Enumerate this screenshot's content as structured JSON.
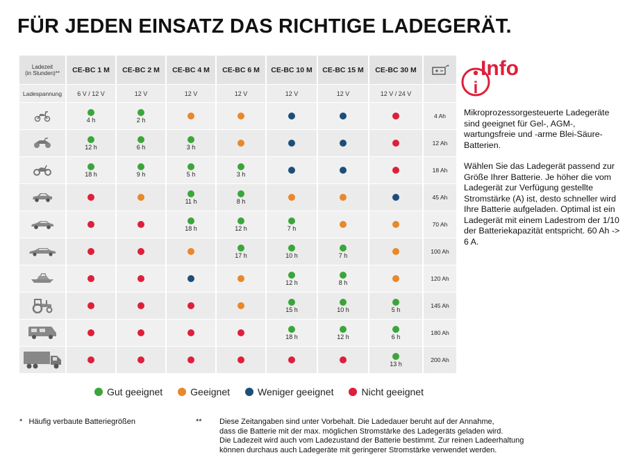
{
  "title": "FÜR JEDEN EINSATZ DAS RICHTIGE LADEGERÄT.",
  "colors": {
    "gut": "#3aa63a",
    "geeignet": "#e8882a",
    "weniger": "#1d4e7a",
    "nicht": "#dd1f3a"
  },
  "table": {
    "corner_label_1": "Ladezeit",
    "corner_label_2": "(in Stunden)**",
    "voltage_label": "Ladespannung",
    "models": [
      "CE-BC 1 M",
      "CE-BC 2 M",
      "CE-BC 4 M",
      "CE-BC 6 M",
      "CE-BC 10 M",
      "CE-BC 15 M",
      "CE-BC 30 M"
    ],
    "voltages": [
      "6 V / 12 V",
      "12 V",
      "12 V",
      "12 V",
      "12 V",
      "12 V",
      "12 V / 24 V"
    ],
    "battery_icon": "battery-icon",
    "rows": [
      {
        "vehicle": "scooter-icon",
        "capacity": "4 Ah",
        "cells": [
          {
            "r": "gut",
            "h": "4 h"
          },
          {
            "r": "gut",
            "h": "2 h"
          },
          {
            "r": "geeignet",
            "h": ""
          },
          {
            "r": "geeignet",
            "h": ""
          },
          {
            "r": "weniger",
            "h": ""
          },
          {
            "r": "weniger",
            "h": ""
          },
          {
            "r": "nicht",
            "h": ""
          }
        ]
      },
      {
        "vehicle": "quad-icon",
        "capacity": "12 Ah",
        "cells": [
          {
            "r": "gut",
            "h": "12 h"
          },
          {
            "r": "gut",
            "h": "6 h"
          },
          {
            "r": "gut",
            "h": "3 h"
          },
          {
            "r": "geeignet",
            "h": ""
          },
          {
            "r": "weniger",
            "h": ""
          },
          {
            "r": "weniger",
            "h": ""
          },
          {
            "r": "nicht",
            "h": ""
          }
        ]
      },
      {
        "vehicle": "motorcycle-icon",
        "capacity": "18 Ah",
        "cells": [
          {
            "r": "gut",
            "h": "18 h"
          },
          {
            "r": "gut",
            "h": "9 h"
          },
          {
            "r": "gut",
            "h": "5 h"
          },
          {
            "r": "gut",
            "h": "3 h"
          },
          {
            "r": "weniger",
            "h": ""
          },
          {
            "r": "weniger",
            "h": ""
          },
          {
            "r": "nicht",
            "h": ""
          }
        ]
      },
      {
        "vehicle": "small-car-icon",
        "capacity": "45 Ah",
        "cells": [
          {
            "r": "nicht",
            "h": ""
          },
          {
            "r": "geeignet",
            "h": ""
          },
          {
            "r": "gut",
            "h": "11 h"
          },
          {
            "r": "gut",
            "h": "8 h"
          },
          {
            "r": "geeignet",
            "h": ""
          },
          {
            "r": "geeignet",
            "h": ""
          },
          {
            "r": "weniger",
            "h": ""
          }
        ]
      },
      {
        "vehicle": "sedan-icon",
        "capacity": "70 Ah",
        "cells": [
          {
            "r": "nicht",
            "h": ""
          },
          {
            "r": "nicht",
            "h": ""
          },
          {
            "r": "gut",
            "h": "18 h"
          },
          {
            "r": "gut",
            "h": "12 h"
          },
          {
            "r": "gut",
            "h": "7 h"
          },
          {
            "r": "geeignet",
            "h": ""
          },
          {
            "r": "geeignet",
            "h": ""
          }
        ]
      },
      {
        "vehicle": "limousine-icon",
        "capacity": "100 Ah",
        "cells": [
          {
            "r": "nicht",
            "h": ""
          },
          {
            "r": "nicht",
            "h": ""
          },
          {
            "r": "geeignet",
            "h": ""
          },
          {
            "r": "gut",
            "h": "17 h"
          },
          {
            "r": "gut",
            "h": "10 h"
          },
          {
            "r": "gut",
            "h": "7 h"
          },
          {
            "r": "geeignet",
            "h": ""
          }
        ]
      },
      {
        "vehicle": "boat-icon",
        "capacity": "120 Ah",
        "cells": [
          {
            "r": "nicht",
            "h": ""
          },
          {
            "r": "nicht",
            "h": ""
          },
          {
            "r": "weniger",
            "h": ""
          },
          {
            "r": "geeignet",
            "h": ""
          },
          {
            "r": "gut",
            "h": "12 h"
          },
          {
            "r": "gut",
            "h": "8 h"
          },
          {
            "r": "geeignet",
            "h": ""
          }
        ]
      },
      {
        "vehicle": "tractor-icon",
        "capacity": "145 Ah",
        "cells": [
          {
            "r": "nicht",
            "h": ""
          },
          {
            "r": "nicht",
            "h": ""
          },
          {
            "r": "nicht",
            "h": ""
          },
          {
            "r": "geeignet",
            "h": ""
          },
          {
            "r": "gut",
            "h": "15 h"
          },
          {
            "r": "gut",
            "h": "10 h"
          },
          {
            "r": "gut",
            "h": "5 h"
          }
        ]
      },
      {
        "vehicle": "camper-icon",
        "capacity": "180 Ah",
        "cells": [
          {
            "r": "nicht",
            "h": ""
          },
          {
            "r": "nicht",
            "h": ""
          },
          {
            "r": "nicht",
            "h": ""
          },
          {
            "r": "nicht",
            "h": ""
          },
          {
            "r": "gut",
            "h": "18 h"
          },
          {
            "r": "gut",
            "h": "12 h"
          },
          {
            "r": "gut",
            "h": "6 h"
          }
        ]
      },
      {
        "vehicle": "truck-icon",
        "capacity": "200 Ah",
        "cells": [
          {
            "r": "nicht",
            "h": ""
          },
          {
            "r": "nicht",
            "h": ""
          },
          {
            "r": "nicht",
            "h": ""
          },
          {
            "r": "nicht",
            "h": ""
          },
          {
            "r": "nicht",
            "h": ""
          },
          {
            "r": "nicht",
            "h": ""
          },
          {
            "r": "gut",
            "h": "13 h"
          }
        ]
      }
    ]
  },
  "legend": [
    {
      "key": "gut",
      "label": "Gut geeignet"
    },
    {
      "key": "geeignet",
      "label": "Geeignet"
    },
    {
      "key": "weniger",
      "label": "Weniger geeignet"
    },
    {
      "key": "nicht",
      "label": "Nicht geeignet"
    }
  ],
  "info": {
    "logo_letter": "i",
    "logo_text": "Info",
    "paragraph1": "Mikroprozessorgesteuerte Ladegeräte sind geeignet für Gel-, AGM-, wartungsfreie und -arme Blei-Säure-Batterien.",
    "paragraph2": "Wählen Sie das Ladegerät passend zur Größe Ihrer Batterie. Je höher die vom Ladegerät zur Verfügung gestellte Stromstärke (A) ist, desto schneller wird Ihre Batterie aufgeladen. Optimal ist ein Ladegerät mit einem Ladestrom der 1/10 der Batteriekapazität entspricht. 60 Ah -> 6 A."
  },
  "footnotes": {
    "star_mark": "*",
    "star_text": "Häufig verbaute Batteriegrößen",
    "dbl_mark": "**",
    "dbl_lines": [
      "Diese Zeitangaben sind unter Vorbehalt. Die Ladedauer beruht auf der Annahme,",
      "dass die Batterie mit der max. möglichen Stromstärke des Ladegeräts geladen wird.",
      "Die Ladezeit wird auch vom Ladezustand der Batterie bestimmt. Zur reinen Ladeerhaltung",
      "können durchaus auch Ladegeräte mit geringerer Stromstärke verwendet werden."
    ]
  }
}
